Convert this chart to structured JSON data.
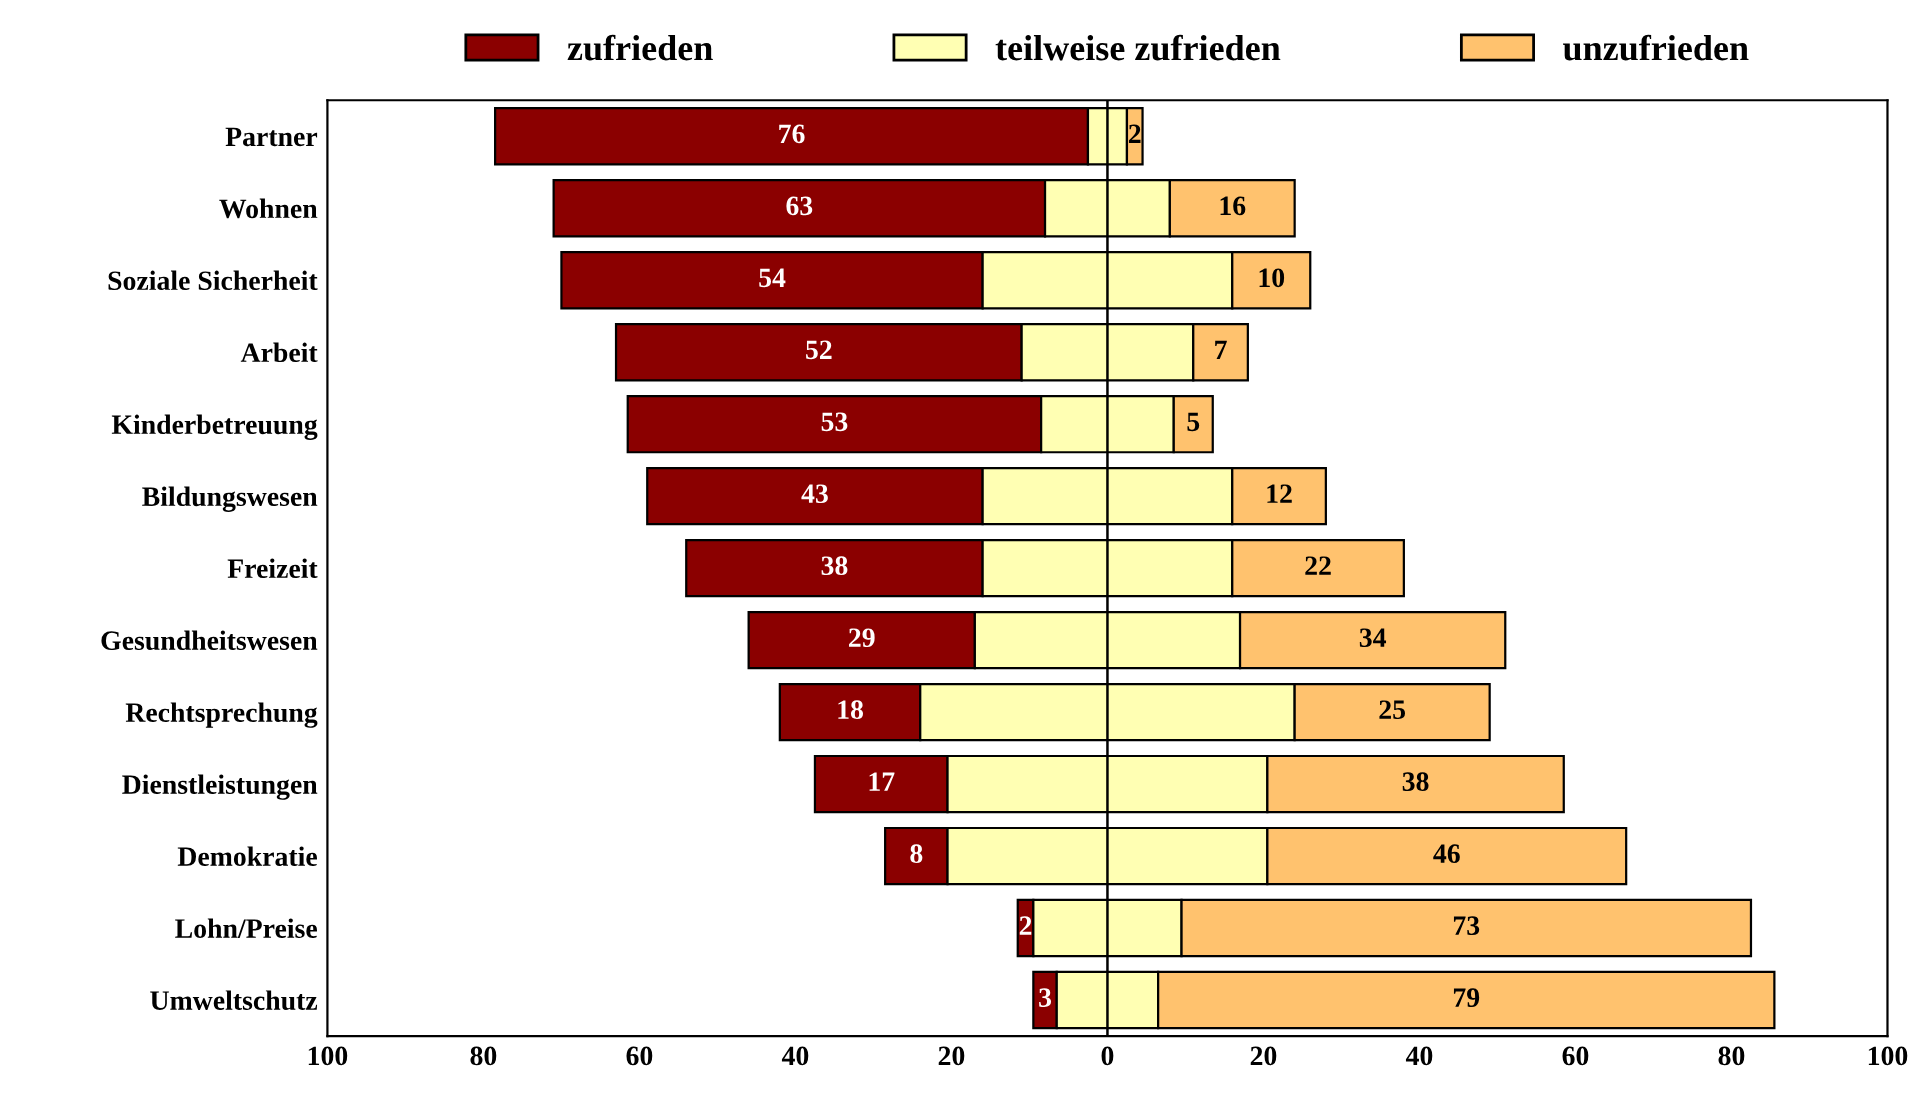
{
  "chart_data": {
    "type": "bar",
    "orientation": "horizontal",
    "categories": [
      "Partner",
      "Wohnen",
      "Soziale Sicherheit",
      "Arbeit",
      "Kinderbetreuung",
      "Bildungswesen",
      "Freizeit",
      "Gesundheitswesen",
      "Rechtsprechung",
      "Dienstleistungen",
      "Demokratie",
      "Lohn/Preise",
      "Umweltschutz"
    ],
    "series": [
      {
        "name": "zufrieden",
        "color": "#8b0000",
        "base": [
          -78.5,
          -71,
          -70,
          -63,
          -61.5,
          -59,
          -54,
          -46,
          -42,
          -37.5,
          -28.5,
          -11.5,
          -9.5
        ],
        "values": [
          76,
          63,
          54,
          52,
          53,
          43,
          38,
          29,
          18,
          17,
          8,
          2,
          3
        ],
        "value_labels": [
          "76",
          "63",
          "54",
          "52",
          "53",
          "43",
          "38",
          "29",
          "18",
          "17",
          "8",
          "2",
          "3"
        ]
      },
      {
        "name": "teilweise zufrieden",
        "color": "#ffffb3",
        "base": [
          -2.5,
          -8,
          -16,
          -11,
          -8.5,
          -16,
          -16,
          -17,
          -24,
          -20.5,
          -20.5,
          -9.5,
          -6.5
        ],
        "values": [
          5,
          16,
          32,
          22,
          17,
          32,
          32,
          34,
          48,
          41,
          41,
          19,
          13
        ]
      },
      {
        "name": "unzufrieden",
        "color": "#ffc26e",
        "base": [
          2.5,
          8,
          16,
          11,
          8.5,
          16,
          16,
          17,
          24,
          20.5,
          20.5,
          9.5,
          6.5
        ],
        "values": [
          2,
          16,
          10,
          7,
          5,
          12,
          22,
          34,
          25,
          38,
          46,
          73,
          79
        ],
        "value_labels": [
          "2",
          "16",
          "10",
          "7",
          "5",
          "12",
          "22",
          "34",
          "25",
          "38",
          "46",
          "73",
          "79"
        ]
      }
    ],
    "xlim": [
      -100,
      100
    ],
    "xticks": [
      {
        "value": -100,
        "label": "100"
      },
      {
        "value": -80,
        "label": "80"
      },
      {
        "value": -60,
        "label": "60"
      },
      {
        "value": -40,
        "label": "40"
      },
      {
        "value": -20,
        "label": "20"
      },
      0,
      20,
      40,
      60,
      80,
      100
    ],
    "ref_lines": [
      {
        "axis": "x",
        "value": 0,
        "color": "#000000"
      }
    ],
    "grid": false,
    "legend": "top"
  }
}
